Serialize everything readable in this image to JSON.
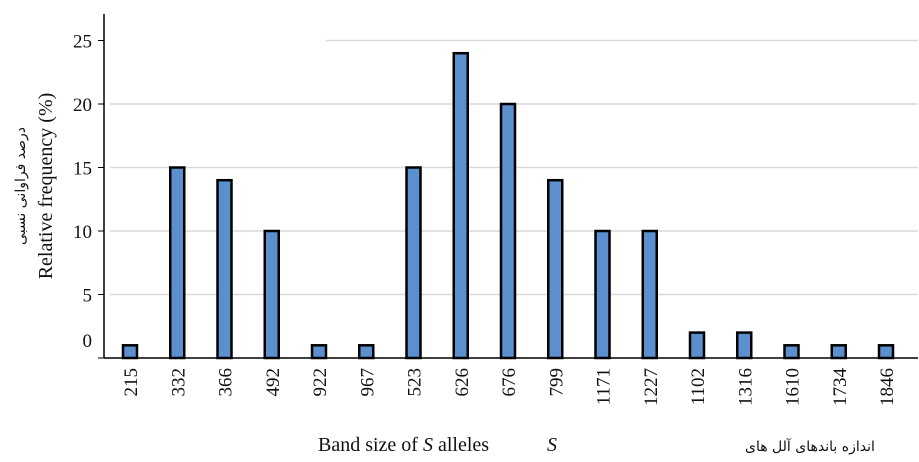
{
  "chart_data": {
    "type": "bar",
    "categories": [
      "215",
      "332",
      "366",
      "492",
      "922",
      "967",
      "523",
      "626",
      "676",
      "799",
      "1171",
      "1227",
      "1102",
      "1316",
      "1610",
      "1734",
      "1846"
    ],
    "values": [
      1,
      15,
      14,
      10,
      1,
      1,
      15,
      24,
      20,
      14,
      10,
      10,
      2,
      2,
      1,
      1,
      1
    ],
    "ylim": [
      0,
      27
    ],
    "yticks": [
      "0",
      "5",
      "10",
      "15",
      "20",
      "25"
    ],
    "ylabel_en": "Relative frequency (%)",
    "ylabel_fa": "درصد فراوانی نسبی",
    "xlabel": {
      "en_prefix": "Band size of ",
      "en_symbol": "S",
      "en_suffix": " alleles",
      "fa_text": "اندازه باندهای آلل های",
      "fa_symbol": "S"
    },
    "grid": "horizontal",
    "bar_color": "#5b8fcd",
    "bar_edge_color": "#000000"
  }
}
